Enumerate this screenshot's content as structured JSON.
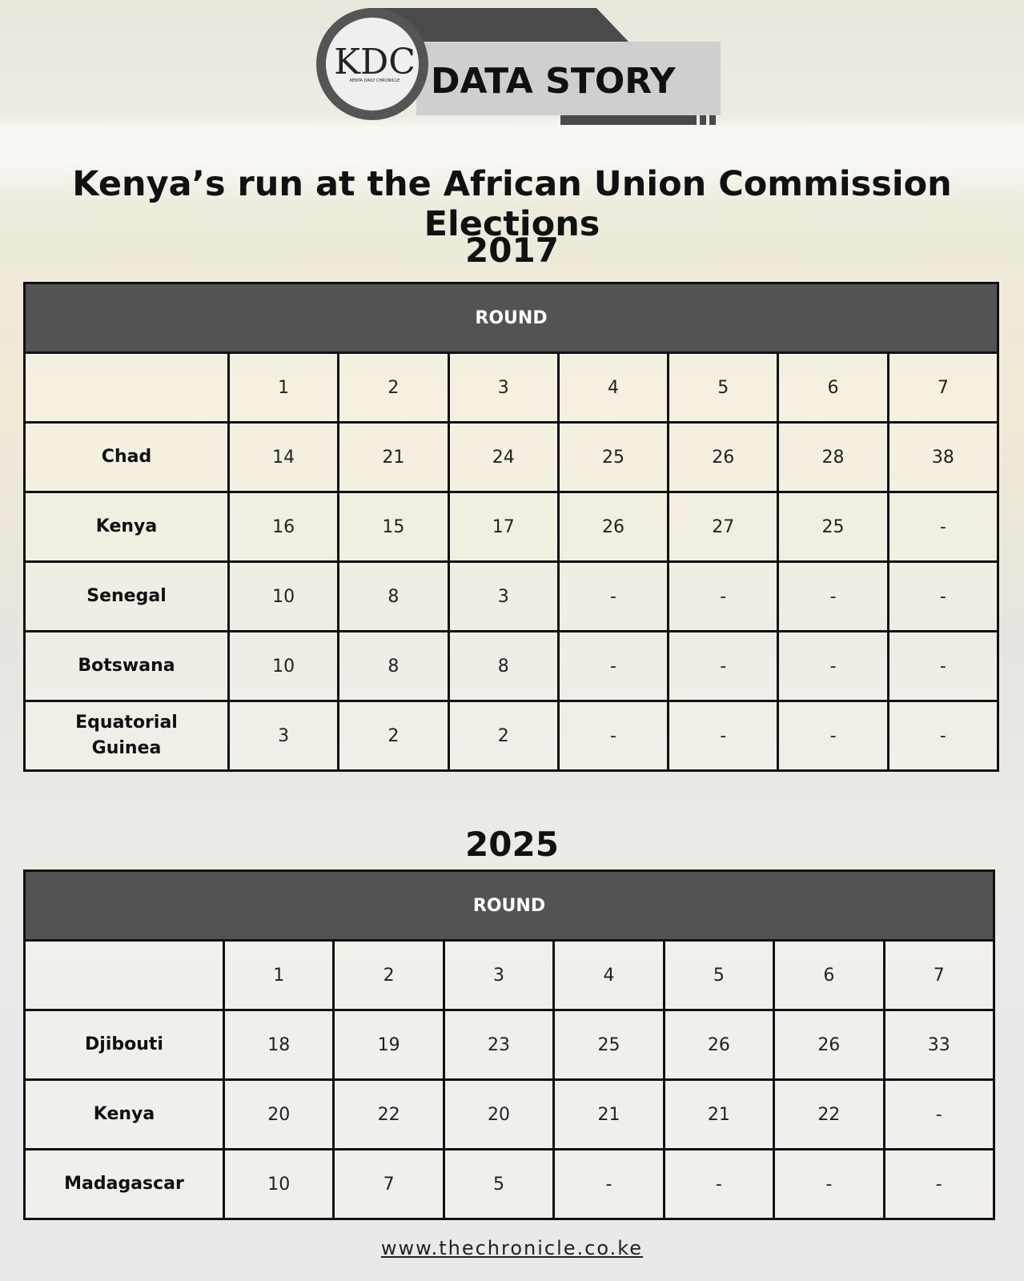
{
  "header": {
    "logo": "KDC",
    "logo_subtitle": "KENYA DAILY CHRONICLE",
    "label": "DATA STORY"
  },
  "title": "Kenya’s run at the African Union Commission Elections",
  "tables": [
    {
      "year": "2017",
      "header": "ROUND",
      "columns": [
        1,
        2,
        3,
        4,
        5,
        6,
        7
      ],
      "rows": [
        {
          "name": "Chad",
          "cells": [
            14,
            21,
            24,
            25,
            26,
            28,
            38
          ]
        },
        {
          "name": "Kenya",
          "cells": [
            16,
            15,
            17,
            26,
            27,
            25,
            "-"
          ]
        },
        {
          "name": "Senegal",
          "cells": [
            10,
            8,
            3,
            "-",
            "-",
            "-",
            "-"
          ]
        },
        {
          "name": "Botswana",
          "cells": [
            10,
            8,
            8,
            "-",
            "-",
            "-",
            "-"
          ]
        },
        {
          "name": "Equatorial Guinea",
          "cells": [
            3,
            2,
            2,
            "-",
            "-",
            "-",
            "-"
          ]
        }
      ]
    },
    {
      "year": "2025",
      "header": "ROUND",
      "columns": [
        1,
        2,
        3,
        4,
        5,
        6,
        7
      ],
      "rows": [
        {
          "name": "Djibouti",
          "cells": [
            18,
            19,
            23,
            25,
            26,
            26,
            33
          ]
        },
        {
          "name": "Kenya",
          "cells": [
            20,
            22,
            20,
            21,
            21,
            22,
            "-"
          ]
        },
        {
          "name": "Madagascar",
          "cells": [
            10,
            7,
            5,
            "-",
            "-",
            "-",
            "-"
          ]
        }
      ]
    }
  ],
  "footer": "www.thechronicle.co.ke"
}
